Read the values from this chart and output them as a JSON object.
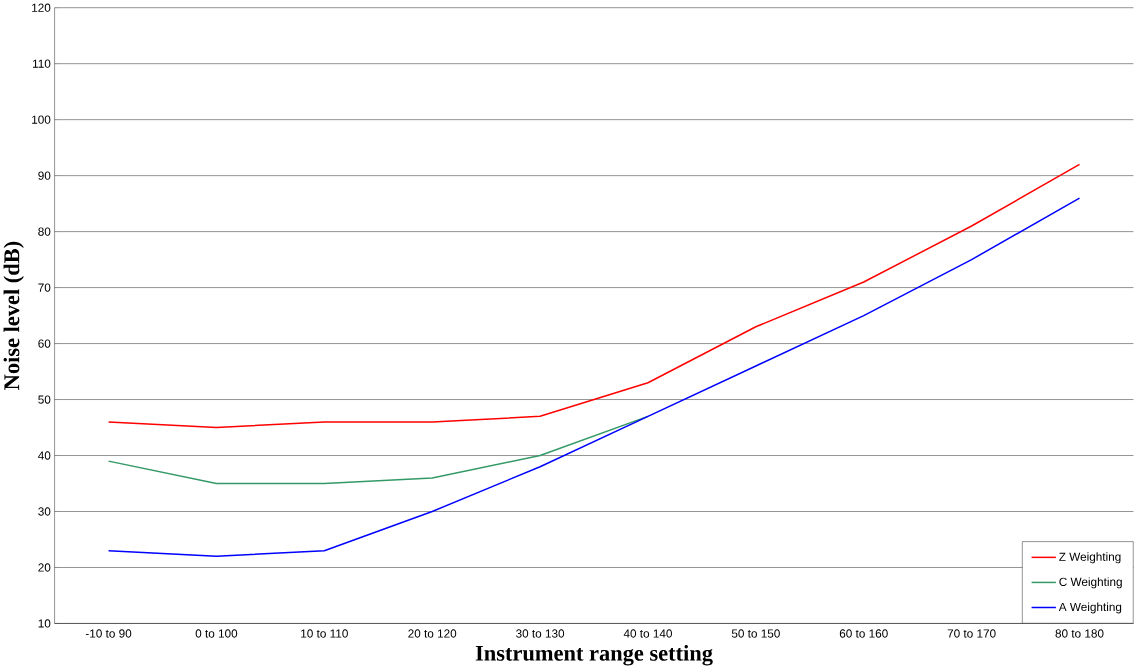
{
  "chart_data": {
    "type": "line",
    "xlabel": "Instrument range setting",
    "ylabel": "Noise level (dB)",
    "categories": [
      "-10 to 90",
      "0 to 100",
      "10 to 110",
      "20 to 120",
      "30 to 130",
      "40 to 140",
      "50 to 150",
      "60 to 160",
      "70 to 170",
      "80 to 180"
    ],
    "series": [
      {
        "name": "Z Weighting",
        "color": "#ff0000",
        "values": [
          46,
          45,
          46,
          46,
          47,
          53,
          63,
          71,
          81,
          92
        ]
      },
      {
        "name": "C Weighting",
        "color": "#339966",
        "values": [
          39,
          35,
          35,
          36,
          40,
          47,
          null,
          null,
          null,
          null
        ]
      },
      {
        "name": "A Weighting",
        "color": "#0000ff",
        "values": [
          23,
          22,
          23,
          30,
          38,
          47,
          56,
          65,
          75,
          86
        ]
      }
    ],
    "ylim": [
      10,
      120
    ],
    "yticks": [
      10,
      20,
      30,
      40,
      50,
      60,
      70,
      80,
      90,
      100,
      110,
      120
    ],
    "grid": "y",
    "legend": "bottom right",
    "marker": "none",
    "line_style": "solid"
  }
}
